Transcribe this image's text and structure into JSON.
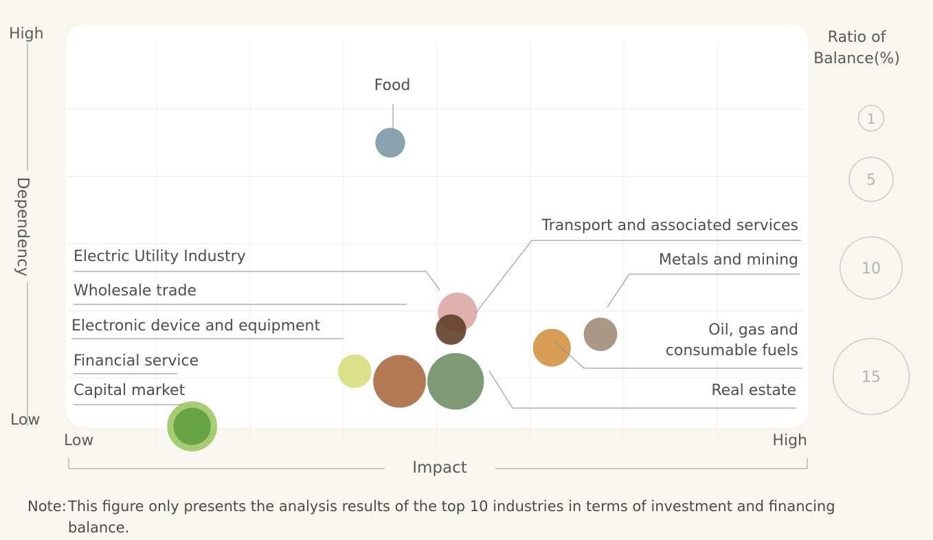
{
  "chart_data": {
    "type": "scatter",
    "x_axis": {
      "label": "Impact",
      "low_label": "Low",
      "high_label": "High"
    },
    "y_axis": {
      "label": "Dependency",
      "low_label": "Low",
      "high_label": "High"
    },
    "size_legend": {
      "title_line1": "Ratio of",
      "title_line2": "Balance(%)",
      "values": [
        1,
        5,
        10,
        15
      ]
    },
    "series": [
      {
        "name": "Food",
        "x": 3.5,
        "y": 4.5,
        "size": 2.3,
        "color": "#7996a3"
      },
      {
        "name": "Transport and associated services",
        "x": 4.15,
        "y": 1.72,
        "size": 2.4,
        "color": "#5c3a24"
      },
      {
        "name": "Electric Utility Industry",
        "x": 4.22,
        "y": 1.98,
        "size": 4.0,
        "color": "#d9a6a3"
      },
      {
        "name": "Wholesale trade",
        "x": 3.6,
        "y": 0.95,
        "size": 7.2,
        "color": "#a9663a"
      },
      {
        "name": "Real estate",
        "x": 4.2,
        "y": 0.95,
        "size": 8.3,
        "color": "#6b8c62"
      },
      {
        "name": "Metals and mining",
        "x": 5.75,
        "y": 1.65,
        "size": 2.9,
        "color": "#9c8a74"
      },
      {
        "name": "Oil, gas and consumable fuels",
        "x": 5.23,
        "y": 1.45,
        "size": 3.7,
        "color": "#d38f3d"
      },
      {
        "name": "Electronic device and equipment",
        "x": 3.12,
        "y": 1.1,
        "size": 2.9,
        "color": "#d6dd78"
      },
      {
        "name": "Financial service",
        "x": 1.38,
        "y": 0.28,
        "size": 6.5,
        "color": "#9bc661"
      },
      {
        "name": "Capital market",
        "x": 1.38,
        "y": 0.28,
        "size": 3.6,
        "color": "#5f9c3d"
      }
    ],
    "xlim": [
      0,
      8
    ],
    "ylim": [
      0,
      6
    ],
    "grid": true,
    "legend": "right"
  },
  "note": {
    "label": "Note:",
    "text": "This figure only presents the analysis results of the top 10 industries in terms of investment and financing balance."
  }
}
